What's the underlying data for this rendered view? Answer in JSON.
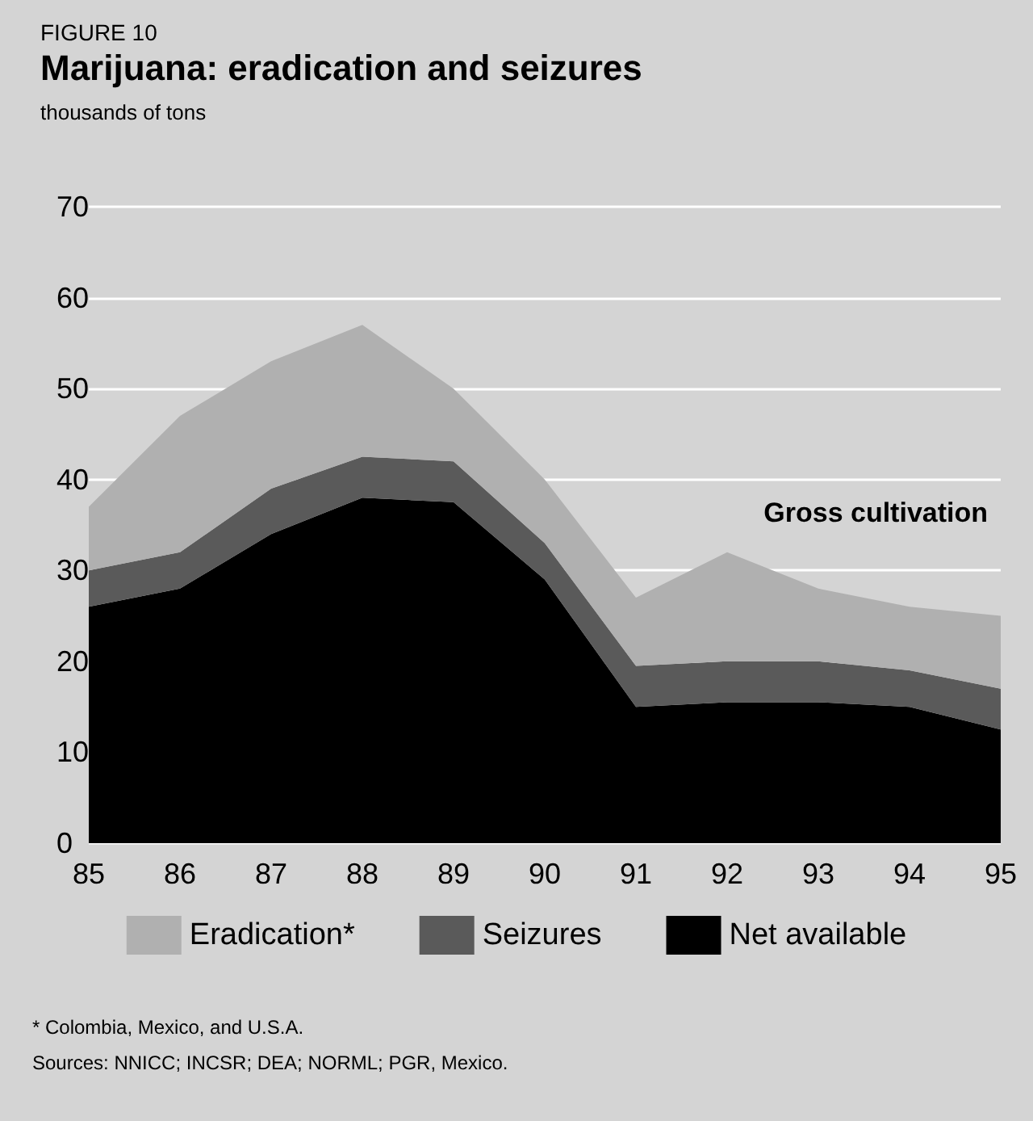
{
  "chart_data": {
    "type": "area",
    "subtitle": "FIGURE 10",
    "title": "Marijuana: eradication and seizures",
    "ylabel": "thousands of tons",
    "categories": [
      "85",
      "86",
      "87",
      "88",
      "89",
      "90",
      "91",
      "92",
      "93",
      "94",
      "95"
    ],
    "stacked": true,
    "series": [
      {
        "name": "Net available",
        "color": "#000000",
        "values": [
          26,
          28,
          34,
          38,
          37.5,
          29,
          15,
          15.5,
          15.5,
          15,
          12.5
        ]
      },
      {
        "name": "Seizures",
        "color": "#5a5a5a",
        "values": [
          4,
          4,
          5,
          4.5,
          4.5,
          4,
          4.5,
          4.5,
          4.5,
          4,
          4.5
        ]
      },
      {
        "name": "Eradication*",
        "color": "#b0b0b0",
        "values": [
          7,
          15,
          14,
          14.5,
          8,
          7,
          7.5,
          12,
          8,
          7,
          8
        ]
      }
    ],
    "ylim": [
      0,
      70
    ],
    "yticks": [
      0,
      10,
      20,
      30,
      40,
      50,
      60,
      70
    ],
    "grid": "y",
    "legend": "bottom",
    "annotations": [
      "Gross cultivation",
      "* Colombia, Mexico, and U.S.A.",
      "Sources: NNICC; INCSR; DEA; NORML; PGR, Mexico."
    ]
  }
}
